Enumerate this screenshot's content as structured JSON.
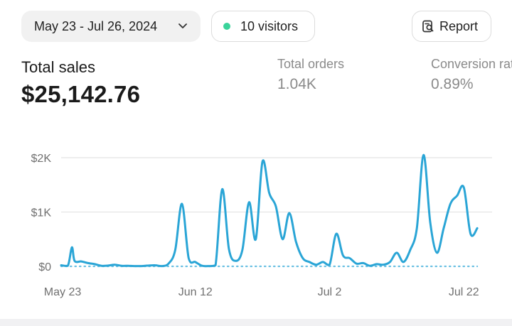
{
  "filters": {
    "date_range": "May 23 - Jul 26, 2024",
    "visitors": "10 visitors",
    "report_label": "Report"
  },
  "metrics": {
    "total_sales_label": "Total sales",
    "total_sales_value": "$25,142.76",
    "total_orders_label": "Total orders",
    "total_orders_value": "1.04K",
    "conversion_label": "Conversion rate",
    "conversion_value": "0.89%"
  },
  "colors": {
    "series": "#2aa5d6",
    "grid": "#e4e4e4",
    "visitor_dot": "#3ad39a"
  },
  "chart_data": {
    "type": "line",
    "y_ticks": [
      "$0",
      "$1K",
      "$2K"
    ],
    "y_tick_values": [
      0,
      1000,
      2000
    ],
    "x_tick_labels": [
      "May 23",
      "Jun 12",
      "Jul 2",
      "Jul 22"
    ],
    "x_tick_days": [
      0,
      20,
      40,
      60
    ],
    "ylim": [
      0,
      2000
    ],
    "xlim": [
      0,
      64
    ],
    "grid": true,
    "series": [
      {
        "color": "#2aa5d6",
        "points": [
          [
            0,
            20
          ],
          [
            1,
            10
          ],
          [
            1.6,
            350
          ],
          [
            2,
            100
          ],
          [
            3,
            90
          ],
          [
            4,
            60
          ],
          [
            5,
            40
          ],
          [
            6,
            10
          ],
          [
            7,
            15
          ],
          [
            8,
            30
          ],
          [
            9,
            10
          ],
          [
            10,
            10
          ],
          [
            11,
            5
          ],
          [
            12,
            5
          ],
          [
            13,
            15
          ],
          [
            14,
            20
          ],
          [
            15,
            5
          ],
          [
            16,
            50
          ],
          [
            17,
            300
          ],
          [
            18,
            1150
          ],
          [
            19,
            150
          ],
          [
            20,
            80
          ],
          [
            21,
            10
          ],
          [
            22,
            5
          ],
          [
            23,
            20
          ],
          [
            24,
            1420
          ],
          [
            25,
            320
          ],
          [
            26,
            100
          ],
          [
            27,
            300
          ],
          [
            28,
            1180
          ],
          [
            29,
            500
          ],
          [
            30,
            1930
          ],
          [
            31,
            1350
          ],
          [
            32,
            1100
          ],
          [
            33,
            500
          ],
          [
            34,
            980
          ],
          [
            35,
            450
          ],
          [
            36,
            150
          ],
          [
            37,
            80
          ],
          [
            38,
            30
          ],
          [
            39,
            80
          ],
          [
            40,
            30
          ],
          [
            41,
            600
          ],
          [
            42,
            200
          ],
          [
            43,
            150
          ],
          [
            44,
            50
          ],
          [
            45,
            60
          ],
          [
            46,
            10
          ],
          [
            47,
            40
          ],
          [
            48,
            30
          ],
          [
            49,
            80
          ],
          [
            50,
            250
          ],
          [
            51,
            80
          ],
          [
            52,
            300
          ],
          [
            53,
            700
          ],
          [
            54,
            2050
          ],
          [
            55,
            800
          ],
          [
            56,
            250
          ],
          [
            57,
            700
          ],
          [
            58,
            1150
          ],
          [
            59,
            1300
          ],
          [
            60,
            1450
          ],
          [
            61,
            600
          ],
          [
            62,
            700
          ]
        ]
      },
      {
        "style": "dotted",
        "color": "#2aa5d6",
        "points": [
          [
            0,
            0
          ],
          [
            62,
            0
          ]
        ]
      }
    ]
  }
}
